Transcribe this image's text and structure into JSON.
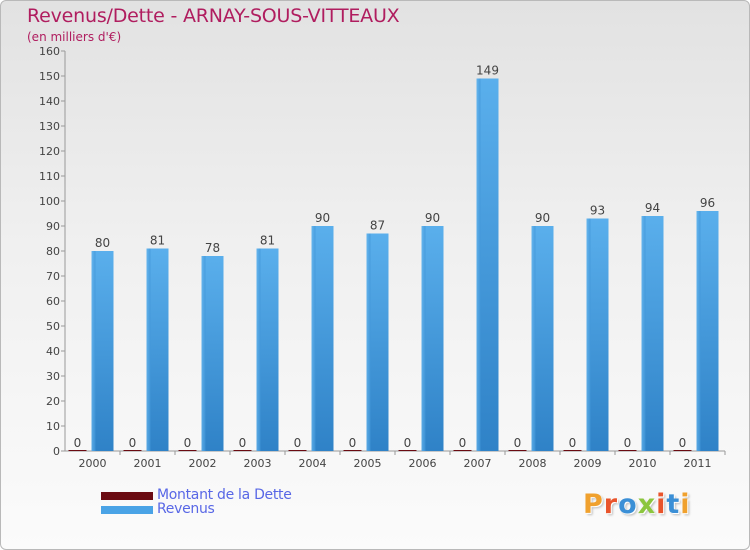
{
  "title": "Revenus/Dette - ARNAY-SOUS-VITTEAUX",
  "subtitle": "(en milliers d'€)",
  "colors": {
    "title": "#b01d5f",
    "debt": "#6b0b12",
    "revenue": "#4aa3e6",
    "revenue_dark": "#2a7fc4",
    "legend_text": "#5867e6"
  },
  "legend": {
    "debt_label": "Montant de la Dette",
    "revenue_label": "Revenus"
  },
  "brand": {
    "letters": [
      "P",
      "r",
      "o",
      "x",
      "i",
      "t",
      "i"
    ],
    "colors": [
      "#f0a12e",
      "#e9542b",
      "#3b8fd6",
      "#8cc63e",
      "#e9542b",
      "#3b8fd6",
      "#f0a12e"
    ]
  },
  "chart_data": {
    "type": "bar",
    "categories": [
      "2000",
      "2001",
      "2002",
      "2003",
      "2004",
      "2005",
      "2006",
      "2007",
      "2008",
      "2009",
      "2010",
      "2011"
    ],
    "series": [
      {
        "name": "Montant de la Dette",
        "values": [
          0,
          0,
          0,
          0,
          0,
          0,
          0,
          0,
          0,
          0,
          0,
          0
        ]
      },
      {
        "name": "Revenus",
        "values": [
          80,
          81,
          78,
          81,
          90,
          87,
          90,
          149,
          90,
          93,
          94,
          96
        ]
      }
    ],
    "ylim": [
      0,
      160
    ],
    "yticks": [
      0,
      10,
      20,
      30,
      40,
      50,
      60,
      70,
      80,
      90,
      100,
      110,
      120,
      130,
      140,
      150,
      160
    ],
    "grid": false,
    "legend_position": "bottom-left"
  }
}
